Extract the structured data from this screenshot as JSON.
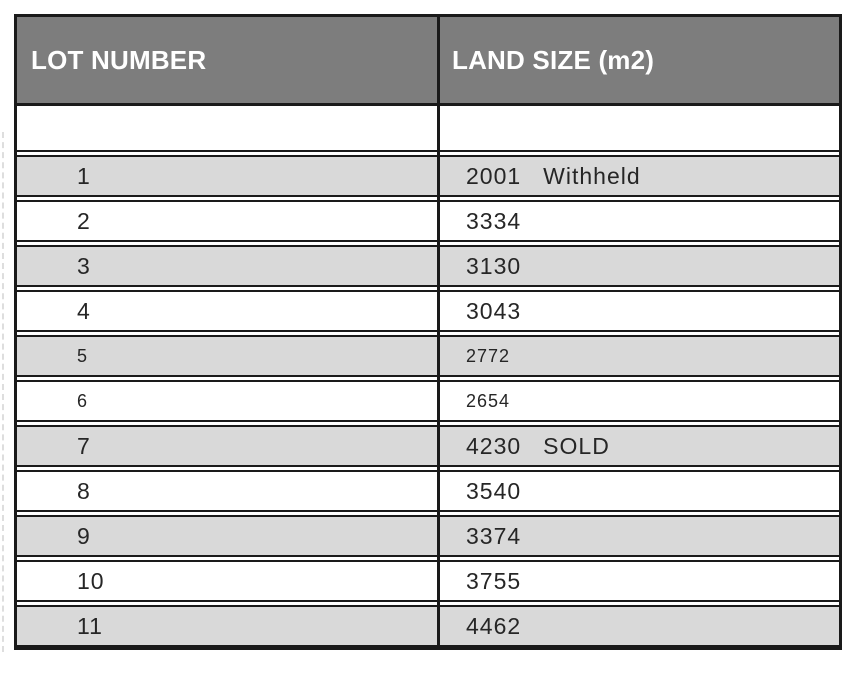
{
  "table": {
    "columns": [
      {
        "label": "LOT NUMBER"
      },
      {
        "label": "LAND SIZE (m2)"
      }
    ],
    "rows": [
      {
        "lot": "1",
        "size": "2001",
        "note": "Withheld",
        "shaded": true,
        "small": false
      },
      {
        "lot": "2",
        "size": "3334",
        "note": "",
        "shaded": false,
        "small": false
      },
      {
        "lot": "3",
        "size": "3130",
        "note": "",
        "shaded": true,
        "small": false
      },
      {
        "lot": "4",
        "size": "3043",
        "note": "",
        "shaded": false,
        "small": false
      },
      {
        "lot": "5",
        "size": "2772",
        "note": "",
        "shaded": true,
        "small": true
      },
      {
        "lot": "6",
        "size": "2654",
        "note": "",
        "shaded": false,
        "small": true
      },
      {
        "lot": "7",
        "size": "4230",
        "note": "SOLD",
        "shaded": true,
        "small": false
      },
      {
        "lot": "8",
        "size": "3540",
        "note": "",
        "shaded": false,
        "small": false
      },
      {
        "lot": "9",
        "size": "3374",
        "note": "",
        "shaded": true,
        "small": false
      },
      {
        "lot": "10",
        "size": "3755",
        "note": "",
        "shaded": false,
        "small": false
      },
      {
        "lot": "11",
        "size": "4462",
        "note": "",
        "shaded": true,
        "small": false
      }
    ],
    "colors": {
      "header_bg": "#7d7d7d",
      "header_text": "#ffffff",
      "row_shaded_bg": "#d9d9d9",
      "row_bg": "#ffffff",
      "border": "#1a1a1a",
      "text": "#262626"
    }
  }
}
